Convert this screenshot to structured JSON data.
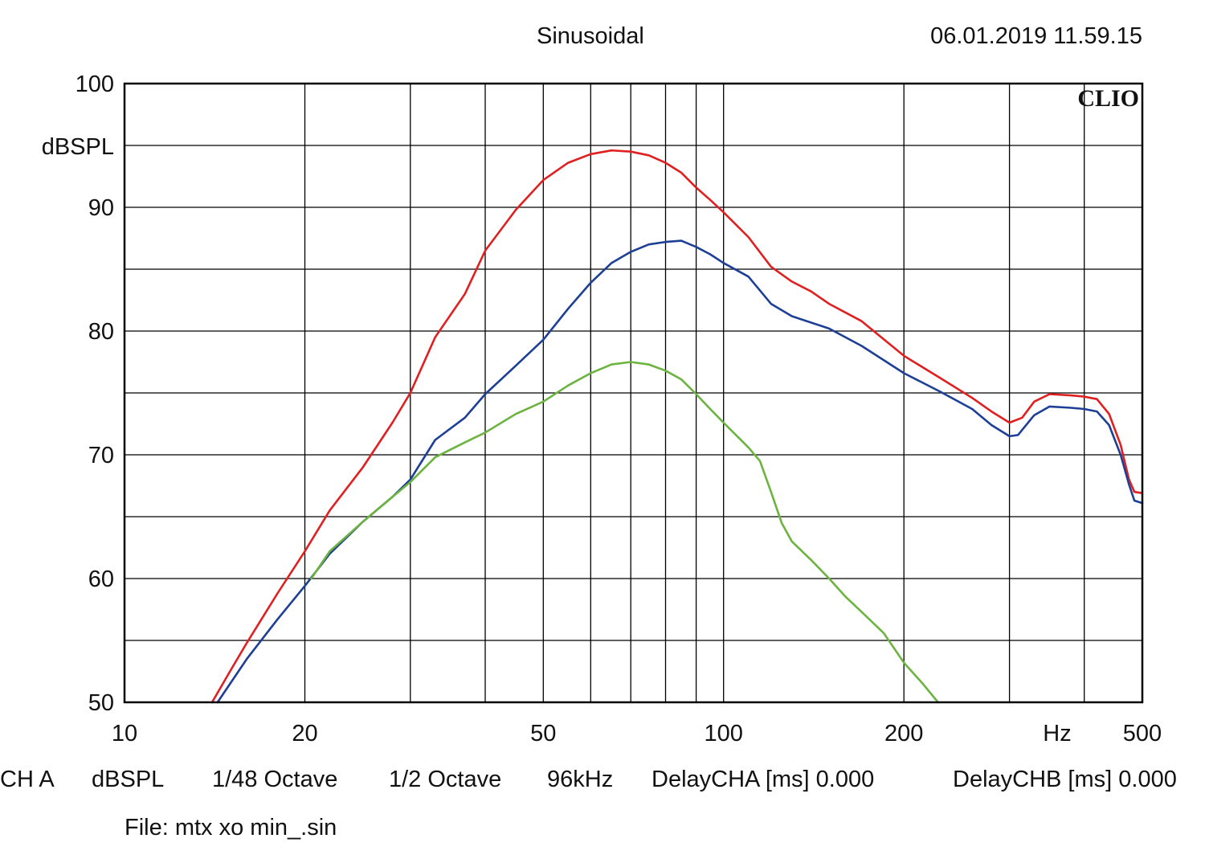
{
  "header": {
    "mode": "Sinusoidal",
    "timestamp": "06.01.2019 11.59.15",
    "brand": "CLIO"
  },
  "footer": {
    "channel": "CH A",
    "unit": "dBSPL",
    "resolution": "1/48 Octave",
    "smoothing": "1/2 Octave",
    "sample_rate": "96kHz",
    "delay_a": "DelayCHA [ms] 0.000",
    "delay_b": "DelayCHB [ms] 0.000",
    "file": "File: mtx xo min_.sin"
  },
  "chart_data": {
    "type": "line",
    "x_scale": "log",
    "xlim": [
      10,
      500
    ],
    "ylim": [
      50,
      100
    ],
    "ylabel": "dBSPL",
    "xunit": "Hz",
    "grid": true,
    "x_gridlines": [
      20,
      30,
      40,
      50,
      60,
      70,
      80,
      90,
      100,
      200,
      300,
      400
    ],
    "y_gridlines": [
      55,
      60,
      65,
      70,
      75,
      80,
      85,
      90,
      95
    ],
    "x_ticks": [
      {
        "value": 10,
        "label": "10"
      },
      {
        "value": 20,
        "label": "20"
      },
      {
        "value": 50,
        "label": "50"
      },
      {
        "value": 100,
        "label": "100"
      },
      {
        "value": 200,
        "label": "200"
      },
      {
        "value": 500,
        "label": "500"
      }
    ],
    "y_ticks": [
      {
        "value": 50,
        "label": "50"
      },
      {
        "value": 60,
        "label": "60"
      },
      {
        "value": 70,
        "label": "70"
      },
      {
        "value": 80,
        "label": "80"
      },
      {
        "value": 90,
        "label": "90"
      },
      {
        "value": 100,
        "label": "100"
      }
    ],
    "series": [
      {
        "color": "#e02020",
        "points": [
          [
            14.0,
            50
          ],
          [
            15,
            52.5
          ],
          [
            16,
            54.8
          ],
          [
            18,
            58.8
          ],
          [
            20,
            62.2
          ],
          [
            22,
            65.5
          ],
          [
            25,
            69
          ],
          [
            28,
            72.6
          ],
          [
            30,
            75
          ],
          [
            33,
            79.5
          ],
          [
            37,
            83
          ],
          [
            40,
            86.5
          ],
          [
            45,
            89.8
          ],
          [
            50,
            92.2
          ],
          [
            55,
            93.6
          ],
          [
            60,
            94.3
          ],
          [
            65,
            94.6
          ],
          [
            70,
            94.5
          ],
          [
            75,
            94.2
          ],
          [
            80,
            93.6
          ],
          [
            85,
            92.8
          ],
          [
            90,
            91.6
          ],
          [
            95,
            90.6
          ],
          [
            100,
            89.6
          ],
          [
            110,
            87.6
          ],
          [
            120,
            85.2
          ],
          [
            130,
            84.0
          ],
          [
            140,
            83.2
          ],
          [
            150,
            82.2
          ],
          [
            170,
            80.8
          ],
          [
            200,
            78
          ],
          [
            230,
            76.2
          ],
          [
            260,
            74.6
          ],
          [
            280,
            73.5
          ],
          [
            300,
            72.6
          ],
          [
            315,
            73
          ],
          [
            330,
            74.3
          ],
          [
            350,
            74.9
          ],
          [
            380,
            74.8
          ],
          [
            400,
            74.7
          ],
          [
            420,
            74.5
          ],
          [
            440,
            73.3
          ],
          [
            460,
            70.8
          ],
          [
            475,
            68
          ],
          [
            485,
            67
          ],
          [
            500,
            66.9
          ]
        ]
      },
      {
        "color": "#1e3f96",
        "points": [
          [
            14.3,
            50
          ],
          [
            16,
            53.5
          ],
          [
            18,
            56.7
          ],
          [
            20,
            59.4
          ],
          [
            22,
            62
          ],
          [
            25,
            64.6
          ],
          [
            28,
            66.6
          ],
          [
            30,
            68
          ],
          [
            33,
            71.2
          ],
          [
            37,
            73
          ],
          [
            40,
            74.9
          ],
          [
            45,
            77.2
          ],
          [
            50,
            79.3
          ],
          [
            55,
            81.8
          ],
          [
            60,
            83.9
          ],
          [
            65,
            85.5
          ],
          [
            70,
            86.4
          ],
          [
            75,
            87
          ],
          [
            80,
            87.2
          ],
          [
            85,
            87.3
          ],
          [
            90,
            86.8
          ],
          [
            95,
            86.2
          ],
          [
            100,
            85.5
          ],
          [
            110,
            84.4
          ],
          [
            120,
            82.2
          ],
          [
            130,
            81.2
          ],
          [
            150,
            80.2
          ],
          [
            170,
            78.8
          ],
          [
            200,
            76.6
          ],
          [
            230,
            75.1
          ],
          [
            260,
            73.7
          ],
          [
            280,
            72.4
          ],
          [
            300,
            71.5
          ],
          [
            310,
            71.6
          ],
          [
            330,
            73.2
          ],
          [
            350,
            73.9
          ],
          [
            380,
            73.8
          ],
          [
            400,
            73.7
          ],
          [
            420,
            73.5
          ],
          [
            440,
            72.4
          ],
          [
            460,
            70
          ],
          [
            475,
            67.6
          ],
          [
            485,
            66.3
          ],
          [
            500,
            66.1
          ]
        ]
      },
      {
        "color": "#6cb33f",
        "points": [
          [
            20.5,
            60
          ],
          [
            22,
            62.2
          ],
          [
            25,
            64.6
          ],
          [
            28,
            66.6
          ],
          [
            30,
            67.8
          ],
          [
            33,
            69.8
          ],
          [
            37,
            71
          ],
          [
            40,
            71.8
          ],
          [
            45,
            73.3
          ],
          [
            50,
            74.3
          ],
          [
            55,
            75.6
          ],
          [
            60,
            76.6
          ],
          [
            65,
            77.3
          ],
          [
            70,
            77.5
          ],
          [
            75,
            77.3
          ],
          [
            80,
            76.8
          ],
          [
            85,
            76.1
          ],
          [
            90,
            74.9
          ],
          [
            95,
            73.7
          ],
          [
            100,
            72.6
          ],
          [
            110,
            70.6
          ],
          [
            115,
            69.5
          ],
          [
            120,
            67
          ],
          [
            125,
            64.5
          ],
          [
            130,
            63
          ],
          [
            140,
            61.5
          ],
          [
            150,
            60
          ],
          [
            160,
            58.5
          ],
          [
            170,
            57.3
          ],
          [
            185,
            55.6
          ],
          [
            200,
            53.2
          ],
          [
            215,
            51.5
          ],
          [
            228,
            50
          ]
        ]
      }
    ]
  }
}
